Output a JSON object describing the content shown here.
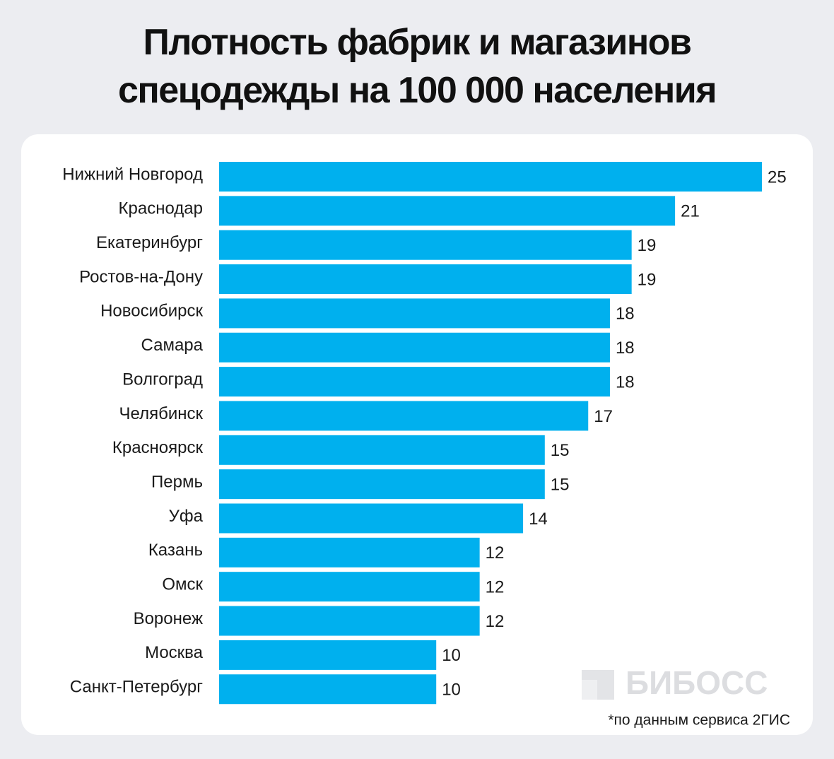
{
  "chart_data": {
    "type": "bar",
    "orientation": "horizontal",
    "title": "Плотность фабрик и магазинов\nспецодежды на 100 000 населения",
    "categories": [
      "Нижний Новгород",
      "Краснодар",
      "Екатеринбург",
      "Ростов-на-Дону",
      "Новосибирск",
      "Самара",
      "Волгоград",
      "Челябинск",
      "Красноярск",
      "Пермь",
      "Уфа",
      "Казань",
      "Омск",
      "Воронеж",
      "Москва",
      "Санкт-Петербург"
    ],
    "values": [
      25,
      21,
      19,
      19,
      18,
      18,
      18,
      17,
      15,
      15,
      14,
      12,
      12,
      12,
      10,
      10
    ],
    "color": "#00b0ee",
    "xlim": [
      0,
      25
    ],
    "watermark": "БИБОСС",
    "note": "*по данным сервиса 2ГИС"
  }
}
